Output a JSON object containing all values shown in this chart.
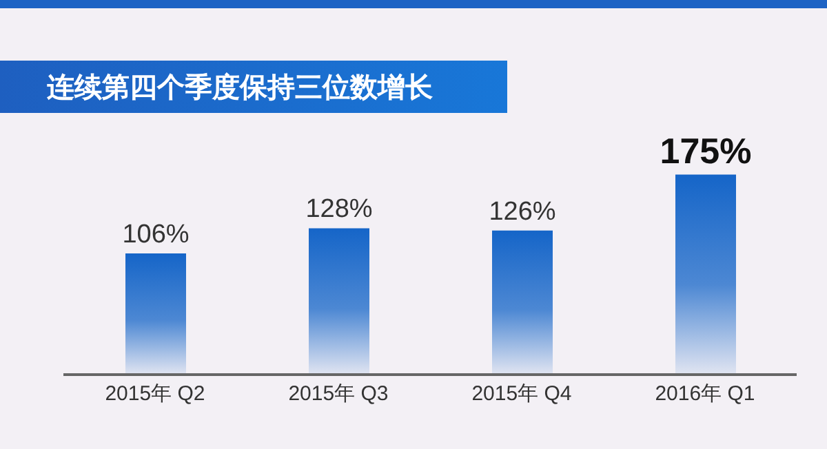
{
  "chart_data": {
    "type": "bar",
    "title": "连续第四个季度保持三位数增长",
    "categories": [
      "2015年 Q2",
      "2015年 Q3",
      "2015年 Q4",
      "2016年 Q1"
    ],
    "values": [
      106,
      128,
      126,
      175
    ],
    "value_labels": [
      "106%",
      "128%",
      "126%",
      "175%"
    ],
    "color": "#1565c8",
    "tick_labels": "x"
  }
}
